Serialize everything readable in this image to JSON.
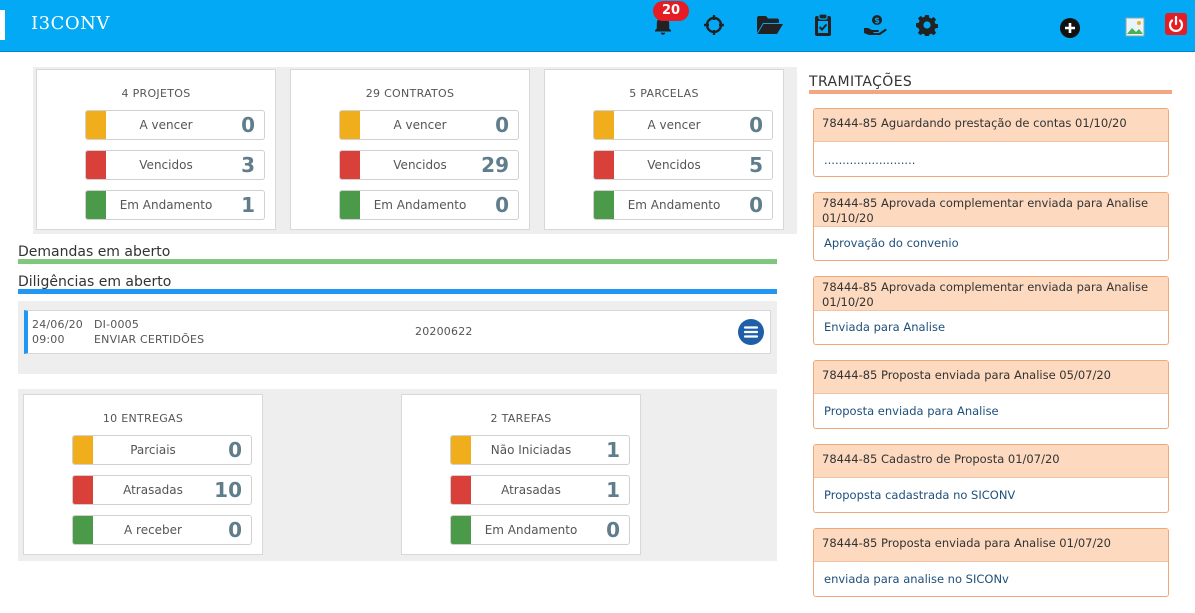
{
  "app": {
    "title": "I3CONV"
  },
  "header": {
    "notification_count": "20",
    "icons": [
      "bell-icon",
      "crosshair-icon",
      "folder-open-icon",
      "clipboard-check-icon",
      "hand-money-icon",
      "gear-icon",
      "plus-circle-icon",
      "image-icon",
      "power-icon"
    ]
  },
  "colors": {
    "topbar": "#03a9f4",
    "amber": "#f0ad1c",
    "red": "#d9403a",
    "green": "#4a9a4a",
    "diligencias_bar": "#2196f3",
    "demandas_bar": "#7dc87d",
    "tramitacoes_bar": "#f4a582"
  },
  "summary": {
    "projetos": {
      "title": "4 PROJETOS",
      "items": [
        {
          "label": "A vencer",
          "value": "0"
        },
        {
          "label": "Vencidos",
          "value": "3"
        },
        {
          "label": "Em Andamento",
          "value": "1"
        }
      ]
    },
    "contratos": {
      "title": "29 CONTRATOS",
      "items": [
        {
          "label": "A vencer",
          "value": "0"
        },
        {
          "label": "Vencidos",
          "value": "29"
        },
        {
          "label": "Em Andamento",
          "value": "0"
        }
      ]
    },
    "parcelas": {
      "title": "5 PARCELAS",
      "items": [
        {
          "label": "A vencer",
          "value": "0"
        },
        {
          "label": "Vencidos",
          "value": "5"
        },
        {
          "label": "Em Andamento",
          "value": "0"
        }
      ]
    }
  },
  "demandas": {
    "title": "Demandas em aberto"
  },
  "diligencias": {
    "title": "Diligências em aberto",
    "rows": [
      {
        "date": "24/06/20",
        "time": "09:00",
        "code": "DI-0005",
        "description": "ENVIAR CERTIDÕES",
        "number": "20200622"
      }
    ]
  },
  "bottom": {
    "entregas": {
      "title": "10 ENTREGAS",
      "items": [
        {
          "label": "Parciais",
          "value": "0"
        },
        {
          "label": "Atrasadas",
          "value": "10"
        },
        {
          "label": "A receber",
          "value": "0"
        }
      ]
    },
    "tarefas": {
      "title": "2 TAREFAS",
      "items": [
        {
          "label": "Não Iniciadas",
          "value": "1"
        },
        {
          "label": "Atrasadas",
          "value": "1"
        },
        {
          "label": "Em Andamento",
          "value": "0"
        }
      ]
    }
  },
  "tramitacoes": {
    "title": "TRAMITAÇÕES",
    "items": [
      {
        "header": "78444-85 Aguardando prestação de contas 01/10/20",
        "body": "........................."
      },
      {
        "header": "78444-85 Aprovada complementar enviada para Analise 01/10/20",
        "body": "Aprovação do convenio"
      },
      {
        "header": "78444-85 Aprovada complementar enviada para Analise 01/10/20",
        "body": "Enviada para Analise"
      },
      {
        "header": "78444-85 Proposta enviada para Analise 05/07/20",
        "body": "Proposta enviada para Analise"
      },
      {
        "header": "78444-85 Cadastro de Proposta 01/07/20",
        "body": "Propopsta cadastrada no SICONV"
      },
      {
        "header": "78444-85 Proposta enviada para Analise 01/07/20",
        "body": "enviada para analise no SICONv"
      }
    ]
  }
}
